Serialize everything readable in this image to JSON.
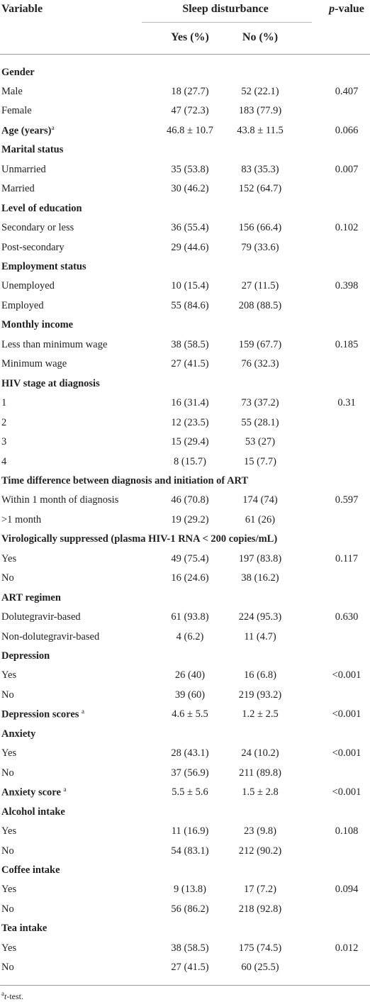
{
  "header": {
    "variable": "Variable",
    "group": "Sleep disturbance",
    "yes": "Yes (%)",
    "no": "No (%)",
    "pvalue": {
      "italic": "p",
      "text": "-value"
    }
  },
  "rows": [
    {
      "label": "Gender",
      "bold": true
    },
    {
      "label": "Male",
      "yes": "18 (27.7)",
      "no": "52 (22.1)",
      "p": "0.407"
    },
    {
      "label": "Female",
      "yes": "47 (72.3)",
      "no": "183 (77.9)"
    },
    {
      "label": "Age (years)",
      "sup": "a",
      "bold": true,
      "yes": "46.8 ± 10.7",
      "no": "43.8 ± 11.5",
      "p": "0.066"
    },
    {
      "label": "Marital status",
      "bold": true
    },
    {
      "label": "Unmarried",
      "yes": "35 (53.8)",
      "no": "83 (35.3)",
      "p": "0.007"
    },
    {
      "label": "Married",
      "yes": "30 (46.2)",
      "no": "152 (64.7)"
    },
    {
      "label": "Level of education",
      "bold": true
    },
    {
      "label": "Secondary or less",
      "yes": "36 (55.4)",
      "no": "156 (66.4)",
      "p": "0.102"
    },
    {
      "label": "Post-secondary",
      "yes": "29 (44.6)",
      "no": "79 (33.6)"
    },
    {
      "label": "Employment status",
      "bold": true
    },
    {
      "label": "Unemployed",
      "yes": "10 (15.4)",
      "no": "27 (11.5)",
      "p": "0.398"
    },
    {
      "label": "Employed",
      "yes": "55 (84.6)",
      "no": "208 (88.5)"
    },
    {
      "label": "Monthly income",
      "bold": true
    },
    {
      "label": "Less than minimum wage",
      "yes": "38 (58.5)",
      "no": "159 (67.7)",
      "p": "0.185"
    },
    {
      "label": "Minimum wage",
      "yes": "27 (41.5)",
      "no": "76 (32.3)"
    },
    {
      "label": "HIV stage at diagnosis",
      "bold": true
    },
    {
      "label": "1",
      "yes": "16 (31.4)",
      "no": "73 (37.2)",
      "p": "0.31"
    },
    {
      "label": "2",
      "yes": "12 (23.5)",
      "no": "55 (28.1)"
    },
    {
      "label": "3",
      "yes": "15 (29.4)",
      "no": "53 (27)"
    },
    {
      "label": "4",
      "yes": "8 (15.7)",
      "no": "15 (7.7)"
    },
    {
      "label": "Time difference between diagnosis and initiation of ART",
      "bold": true
    },
    {
      "label": "Within 1 month of diagnosis",
      "yes": "46 (70.8)",
      "no": "174 (74)",
      "p": "0.597"
    },
    {
      "label": ">1 month",
      "yes": "19 (29.2)",
      "no": "61 (26)"
    },
    {
      "label": "Virologically suppressed (plasma HIV-1 RNA < 200 copies/mL)",
      "bold": true
    },
    {
      "label": "Yes",
      "yes": "49 (75.4)",
      "no": "197 (83.8)",
      "p": "0.117"
    },
    {
      "label": "No",
      "yes": "16 (24.6)",
      "no": "38 (16.2)"
    },
    {
      "label": "ART regimen",
      "bold": true
    },
    {
      "label": "Dolutegravir-based",
      "yes": "61 (93.8)",
      "no": "224 (95.3)",
      "p": "0.630"
    },
    {
      "label": "Non-dolutegravir-based",
      "yes": "4 (6.2)",
      "no": "11 (4.7)"
    },
    {
      "label": "Depression",
      "bold": true
    },
    {
      "label": "Yes",
      "yes": "26 (40)",
      "no": "16 (6.8)",
      "p": "<0.001"
    },
    {
      "label": "No",
      "yes": "39 (60)",
      "no": "219 (93.2)"
    },
    {
      "label": "Depression scores ",
      "sup": "a",
      "bold": true,
      "yes": "4.6 ± 5.5",
      "no": "1.2 ± 2.5",
      "p": "<0.001"
    },
    {
      "label": "Anxiety",
      "bold": true
    },
    {
      "label": "Yes",
      "yes": "28 (43.1)",
      "no": "24 (10.2)",
      "p": "<0.001"
    },
    {
      "label": "No",
      "yes": "37 (56.9)",
      "no": "211 (89.8)"
    },
    {
      "label": "Anxiety score ",
      "sup": "a",
      "bold": true,
      "yes": "5.5 ± 5.6",
      "no": "1.5 ± 2.8",
      "p": "<0.001"
    },
    {
      "label": "Alcohol intake",
      "bold": true
    },
    {
      "label": "Yes",
      "yes": "11 (16.9)",
      "no": "23 (9.8)",
      "p": "0.108"
    },
    {
      "label": "No",
      "yes": "54 (83.1)",
      "no": "212 (90.2)"
    },
    {
      "label": "Coffee intake",
      "bold": true
    },
    {
      "label": "Yes",
      "yes": "9 (13.8)",
      "no": "17 (7.2)",
      "p": "0.094"
    },
    {
      "label": "No",
      "yes": "56 (86.2)",
      "no": "218 (92.8)"
    },
    {
      "label": "Tea intake",
      "bold": true
    },
    {
      "label": "Yes",
      "yes": "38 (58.5)",
      "no": "175 (74.5)",
      "p": "0.012"
    },
    {
      "label": "No",
      "yes": "27 (41.5)",
      "no": "60 (25.5)"
    }
  ],
  "footnote": {
    "mark": "a",
    "italic": "t",
    "text": "-test."
  }
}
